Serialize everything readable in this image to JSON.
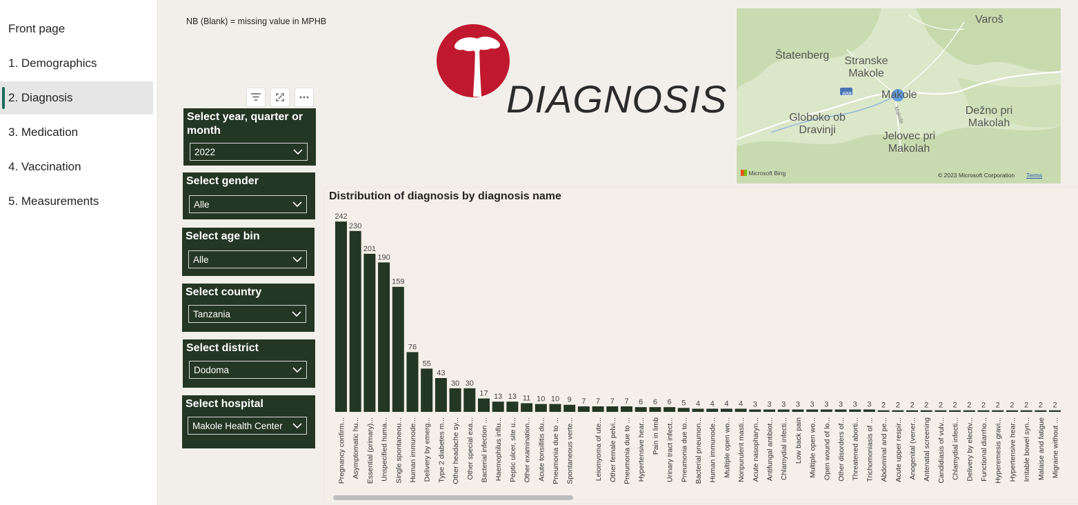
{
  "nav": {
    "items": [
      {
        "label": "Front page"
      },
      {
        "label": "1. Demographics"
      },
      {
        "label": "2. Diagnosis"
      },
      {
        "label": "3. Medication"
      },
      {
        "label": "4. Vaccination"
      },
      {
        "label": "5. Measurements"
      }
    ],
    "active_index": 2
  },
  "note": "NB (Blank) = missing value in MPHB",
  "title": "DIAGNOSIS",
  "colors": {
    "brand_red": "#c0192f",
    "slicer_bg": "#243624",
    "bar": "#243624",
    "active_nav_accent": "#1e6b5c"
  },
  "visual_tools": [
    "filter-icon",
    "focus-mode-icon",
    "more-options-icon"
  ],
  "slicers": [
    {
      "label": "Select year, quarter or month",
      "value": "2022"
    },
    {
      "label": "Select gender",
      "value": "Alle"
    },
    {
      "label": "Select age bin",
      "value": "Alle"
    },
    {
      "label": "Select country",
      "value": "Tanzania"
    },
    {
      "label": "Select district",
      "value": "Dodoma"
    },
    {
      "label": "Select hospital",
      "value": "Makole Health Center"
    }
  ],
  "map": {
    "places": [
      "Varoš",
      "Štatenberg",
      "Stranske Makole",
      "Makole",
      "Globoko ob Dravinji",
      "Dežno pri Makolah",
      "Jelovec pri Makolah",
      "688",
      "Makole"
    ],
    "attribution_logo": "Microsoft Bing",
    "copyright": "© 2023 Microsoft Corporation",
    "terms": "Terms"
  },
  "chart_data": {
    "type": "bar",
    "title": "Distribution of diagnosis by diagnosis name",
    "categories": [
      "Pregnancy confirm...",
      "Asymptomatic hu...",
      "Essential (primary)...",
      "Unspecified huma...",
      "Single spontaneou...",
      "Human immunode...",
      "Delivery by emerg...",
      "Type 2 diabetes m...",
      "Other headache sy...",
      "Other special exa...",
      "Bacterial infection ...",
      "Haemophilus influ...",
      "Peptic ulcer, site u...",
      "Other examination...",
      "Acute tonsillitis du...",
      "Pneumonia due to ...",
      "Spontaneous verte...",
      "",
      "Leiomyoma of ute...",
      "Other female pelvi...",
      "Pneumonia due to ...",
      "Hypertensive hear...",
      "Pain in limb",
      "Urinary tract infect...",
      "Pneumonia due to...",
      "Bacterial pneumon...",
      "Human immunode...",
      "Multiple open wo...",
      "Nonpurulent masti...",
      "Acute nasopharyn...",
      "Antifungal antibiot...",
      "Chlamydial infecti...",
      "Low back pain",
      "Multiple open wo...",
      "Open wound of lo...",
      "Other disorders of...",
      "Threatened aborti...",
      "Trichomoniasis of ...",
      "Abdominal and pe...",
      "Acute upper respir...",
      "Anogenital (vener...",
      "Antenatal screening",
      "Candidiasis of vulv...",
      "Chlamydial infecti...",
      "Delivery by electiv...",
      "Functional diarrho...",
      "Hyperemesis gravi...",
      "Hypertensive hear...",
      "Irritable bowel syn...",
      "Malaise and fatigue",
      "Migraine without ..."
    ],
    "values": [
      242,
      230,
      201,
      190,
      159,
      76,
      55,
      43,
      30,
      30,
      17,
      13,
      13,
      11,
      10,
      10,
      9,
      7,
      7,
      7,
      7,
      6,
      6,
      6,
      5,
      4,
      4,
      4,
      4,
      3,
      3,
      3,
      3,
      3,
      3,
      3,
      3,
      3,
      2,
      2,
      2,
      2,
      2,
      2,
      2,
      2,
      2,
      2,
      2,
      2,
      2
    ],
    "ylim": [
      0,
      250
    ],
    "xlabel": "",
    "ylabel": "",
    "grid": false,
    "legend": "none"
  }
}
